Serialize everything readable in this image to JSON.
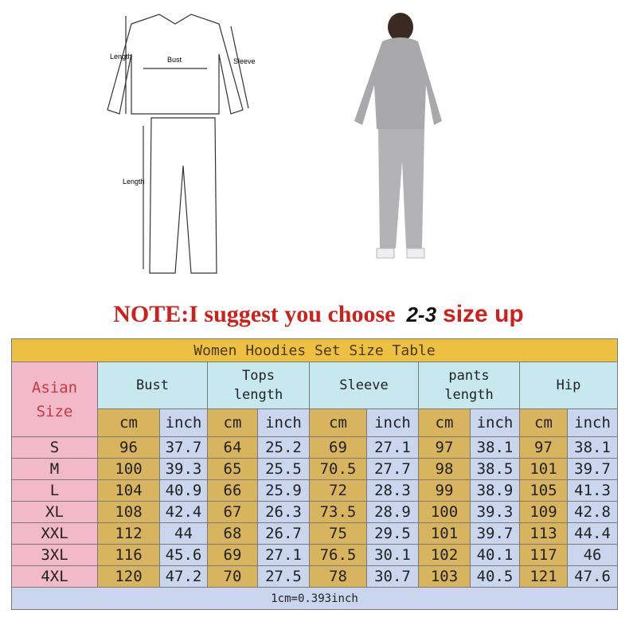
{
  "diagram": {
    "labels": {
      "top_length": "Length",
      "bust": "Bust",
      "sleeve": "Sleeve",
      "pants_length": "Length"
    }
  },
  "note": {
    "prefix": "NOTE:I suggest you choose",
    "number": "2-3",
    "suffix": "size up"
  },
  "table": {
    "title": "Women Hoodies Set Size Table",
    "size_header": [
      "Asian",
      "Size"
    ],
    "groups": [
      [
        "Bust",
        ""
      ],
      [
        "Tops",
        "length"
      ],
      [
        "Sleeve",
        ""
      ],
      [
        "pants",
        "length"
      ],
      [
        "Hip",
        ""
      ]
    ],
    "unit_cm": "cm",
    "unit_inch": "inch",
    "rows": [
      [
        "S",
        "96",
        "37.7",
        "64",
        "25.2",
        "69",
        "27.1",
        "97",
        "38.1",
        "97",
        "38.1"
      ],
      [
        "M",
        "100",
        "39.3",
        "65",
        "25.5",
        "70.5",
        "27.7",
        "98",
        "38.5",
        "101",
        "39.7"
      ],
      [
        "L",
        "104",
        "40.9",
        "66",
        "25.9",
        "72",
        "28.3",
        "99",
        "38.9",
        "105",
        "41.3"
      ],
      [
        "XL",
        "108",
        "42.4",
        "67",
        "26.3",
        "73.5",
        "28.9",
        "100",
        "39.3",
        "109",
        "42.8"
      ],
      [
        "XXL",
        "112",
        "44",
        "68",
        "26.7",
        "75",
        "29.5",
        "101",
        "39.7",
        "113",
        "44.4"
      ],
      [
        "3XL",
        "116",
        "45.6",
        "69",
        "27.1",
        "76.5",
        "30.1",
        "102",
        "40.1",
        "117",
        "46"
      ],
      [
        "4XL",
        "120",
        "47.2",
        "70",
        "27.5",
        "78",
        "30.7",
        "103",
        "40.5",
        "121",
        "47.6"
      ]
    ],
    "footer": "1cm=0.393inch"
  },
  "colors": {
    "title": "#eec042",
    "size": "#f1b9c9",
    "group": "#c8e8ef",
    "cm": "#d8b45e",
    "inch": "#c9d6ee",
    "note_red": "#d0201c"
  }
}
